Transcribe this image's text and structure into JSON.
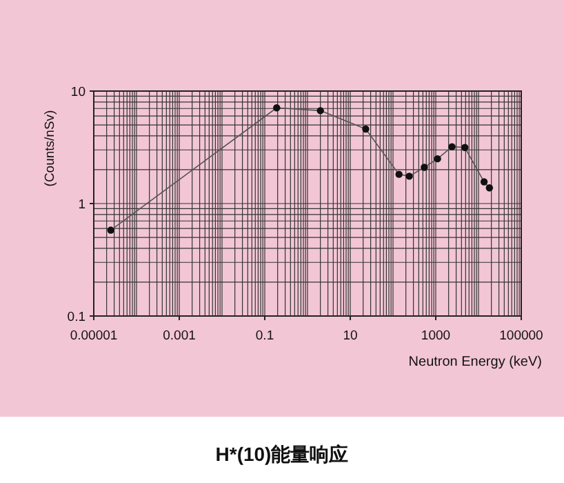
{
  "chart_data": {
    "type": "line",
    "xlabel": "Neutron Energy (keV)",
    "ylabel": "(Counts/nSv)",
    "annotations": [
      "H*(10)能量响应"
    ],
    "log": "xy",
    "grid": true,
    "marker": "circle",
    "line_style": "solid",
    "xlim": [
      1e-05,
      100000
    ],
    "xticks": [
      {
        "value": 1e-05,
        "label": "0.00001"
      },
      0.001,
      0.1,
      10,
      1000,
      100000
    ],
    "ylim": [
      0.1,
      10
    ],
    "yticks": [
      0.1,
      1,
      10
    ],
    "series": [
      {
        "color": "#555555",
        "x": [
          2.5e-05,
          0.19,
          2.0,
          23,
          138,
          240,
          540,
          1100,
          2400,
          4800,
          13500,
          18000
        ],
        "values": [
          0.58,
          7.1,
          6.7,
          4.6,
          1.82,
          1.75,
          2.1,
          2.5,
          3.2,
          3.15,
          1.56,
          1.38
        ]
      }
    ]
  }
}
